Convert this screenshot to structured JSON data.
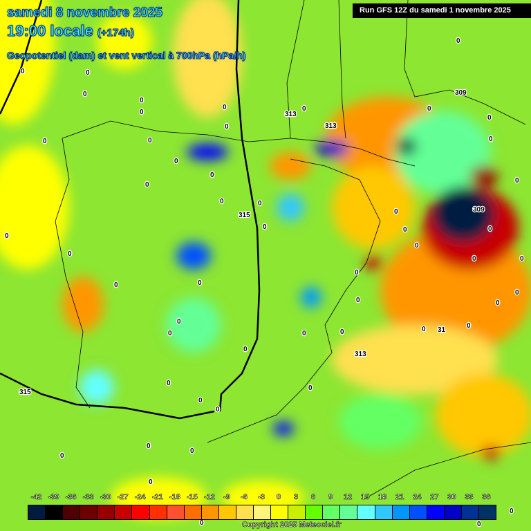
{
  "header": {
    "date": "samedi 8 novembre 2025",
    "time": "19:00 locale",
    "lead": "(+174h)",
    "parameter": "Geopotentiel (dam) et vent vertical à 700hPa (hPa/h)"
  },
  "run": "Run GFS 12Z du samedi 1 novembre 2025",
  "copyright": "Copyright 2025 Meteociel.fr",
  "colorbar": {
    "ticks": [
      "-42",
      "-39",
      "-36",
      "-33",
      "-30",
      "-27",
      "-24",
      "-21",
      "-18",
      "-15",
      "-12",
      "-9",
      "-6",
      "-3",
      "0",
      "3",
      "6",
      "9",
      "12",
      "15",
      "18",
      "21",
      "24",
      "27",
      "30",
      "33",
      "36"
    ],
    "colors": [
      "#001a40",
      "#000000",
      "#500000",
      "#6e0000",
      "#960000",
      "#c80000",
      "#ff0000",
      "#ff3000",
      "#ff5030",
      "#ff6e00",
      "#ff9600",
      "#ffc800",
      "#ffe050",
      "#fff57a",
      "#ffff00",
      "#c8f000",
      "#64ff00",
      "#64ff64",
      "#64ff96",
      "#64ffff",
      "#30c8ff",
      "#0096ff",
      "#0050ff",
      "#0000ff",
      "#0000c8",
      "#003296",
      "#003264"
    ]
  },
  "contours": {
    "geopotential_labels": [
      "313",
      "313",
      "315",
      "315",
      "309",
      "309",
      "31",
      "313"
    ],
    "vertical_wind_label": "0"
  }
}
